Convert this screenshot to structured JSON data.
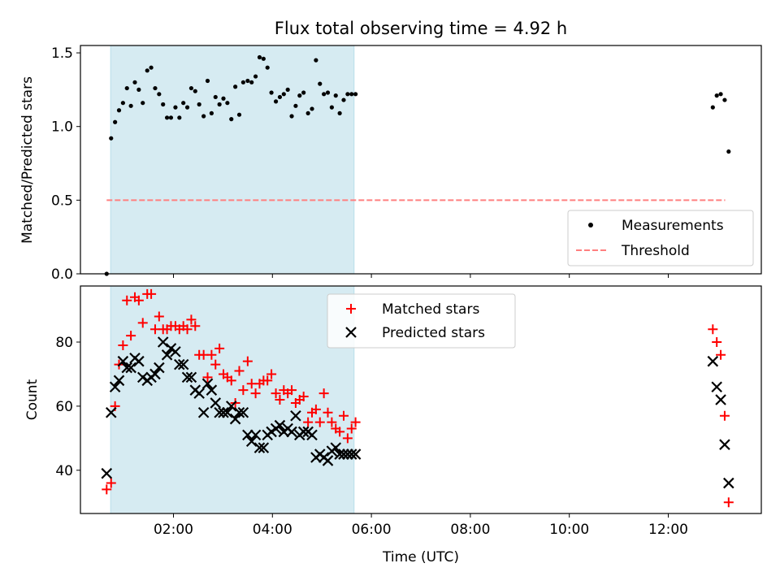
{
  "chart_data": [
    {
      "type": "scatter",
      "title": "Flux total observing time = 4.92 h",
      "xlabel": "",
      "ylabel": "Matched/Predicted stars",
      "x_unit": "hours UTC",
      "xlim": [
        0.12,
        13.88
      ],
      "ylim": [
        0.0,
        1.55
      ],
      "yticks": [
        0.0,
        0.5,
        1.0,
        1.5
      ],
      "ytick_labels": [
        "0.0",
        "0.5",
        "1.0",
        "1.5"
      ],
      "shaded_span": [
        0.73,
        5.65
      ],
      "shade_color": "#add8e6",
      "threshold": {
        "label": "Threshold",
        "value": 0.5,
        "x_range": [
          0.65,
          13.15
        ],
        "color": "#ff7f7f"
      },
      "legend": {
        "placement": "lower right",
        "entries": [
          "Measurements",
          "Threshold"
        ]
      },
      "series": [
        {
          "name": "Measurements",
          "marker": "dot",
          "color": "#000000",
          "x": [
            0.65,
            0.74,
            0.82,
            0.9,
            0.98,
            1.06,
            1.14,
            1.22,
            1.3,
            1.38,
            1.47,
            1.55,
            1.63,
            1.71,
            1.79,
            1.87,
            1.95,
            2.04,
            2.12,
            2.2,
            2.28,
            2.36,
            2.44,
            2.52,
            2.61,
            2.69,
            2.77,
            2.85,
            2.93,
            3.01,
            3.09,
            3.17,
            3.25,
            3.33,
            3.41,
            3.5,
            3.58,
            3.66,
            3.74,
            3.82,
            3.9,
            3.98,
            4.07,
            4.15,
            4.23,
            4.31,
            4.39,
            4.47,
            4.55,
            4.63,
            4.72,
            4.8,
            4.88,
            4.96,
            5.04,
            5.12,
            5.2,
            5.28,
            5.36,
            5.44,
            5.52,
            5.6,
            5.68,
            12.9,
            12.98,
            13.06,
            13.14,
            13.22
          ],
          "y": [
            0.0,
            0.92,
            1.03,
            1.11,
            1.16,
            1.26,
            1.14,
            1.3,
            1.25,
            1.16,
            1.38,
            1.4,
            1.26,
            1.22,
            1.15,
            1.06,
            1.06,
            1.13,
            1.06,
            1.16,
            1.13,
            1.26,
            1.24,
            1.15,
            1.07,
            1.31,
            1.09,
            1.2,
            1.15,
            1.19,
            1.16,
            1.05,
            1.27,
            1.08,
            1.3,
            1.31,
            1.3,
            1.34,
            1.47,
            1.46,
            1.4,
            1.23,
            1.17,
            1.2,
            1.22,
            1.25,
            1.07,
            1.14,
            1.21,
            1.23,
            1.09,
            1.12,
            1.45,
            1.29,
            1.22,
            1.23,
            1.13,
            1.21,
            1.09,
            1.18,
            1.22,
            1.22,
            1.22,
            1.13,
            1.21,
            1.22,
            1.18,
            0.83
          ]
        }
      ]
    },
    {
      "type": "scatter",
      "title": "",
      "xlabel": "Time (UTC)",
      "ylabel": "Count",
      "x_unit": "hours UTC",
      "xlim": [
        0.12,
        13.88
      ],
      "ylim": [
        26.5,
        97.5
      ],
      "yticks": [
        40,
        60,
        80
      ],
      "ytick_labels": [
        "40",
        "60",
        "80"
      ],
      "xticks": [
        2,
        4,
        6,
        8,
        10,
        12
      ],
      "xtick_labels": [
        "02:00",
        "04:00",
        "06:00",
        "08:00",
        "10:00",
        "12:00"
      ],
      "shaded_span": [
        0.73,
        5.65
      ],
      "shade_color": "#add8e6",
      "legend": {
        "placement": "upper center",
        "entries": [
          "Matched stars",
          "Predicted stars"
        ]
      },
      "series": [
        {
          "name": "Matched stars",
          "marker": "plus",
          "color": "#ff0000",
          "x": [
            0.65,
            0.74,
            0.82,
            0.9,
            0.98,
            1.06,
            1.14,
            1.22,
            1.3,
            1.38,
            1.47,
            1.55,
            1.63,
            1.71,
            1.79,
            1.87,
            1.95,
            2.04,
            2.12,
            2.2,
            2.28,
            2.36,
            2.44,
            2.52,
            2.61,
            2.69,
            2.77,
            2.85,
            2.93,
            3.01,
            3.09,
            3.17,
            3.25,
            3.33,
            3.41,
            3.5,
            3.58,
            3.66,
            3.74,
            3.82,
            3.9,
            3.98,
            4.07,
            4.15,
            4.23,
            4.31,
            4.39,
            4.47,
            4.55,
            4.63,
            4.72,
            4.8,
            4.88,
            4.96,
            5.04,
            5.12,
            5.2,
            5.28,
            5.36,
            5.44,
            5.52,
            5.6,
            5.68,
            12.9,
            12.98,
            13.06,
            13.14,
            13.22
          ],
          "y": [
            34,
            36,
            60,
            73,
            79,
            93,
            82,
            94,
            93,
            86,
            95,
            95,
            84,
            88,
            84,
            84,
            85,
            85,
            84,
            85,
            84,
            87,
            85,
            76,
            76,
            69,
            76,
            73,
            78,
            70,
            69,
            68,
            61,
            71,
            65,
            74,
            67,
            64,
            67,
            68,
            68,
            70,
            64,
            62,
            65,
            64,
            65,
            61,
            62,
            63,
            55,
            58,
            59,
            55,
            64,
            58,
            55,
            53,
            52,
            57,
            50,
            53,
            55,
            84,
            80,
            76,
            57,
            30
          ]
        },
        {
          "name": "Predicted stars",
          "marker": "x",
          "color": "#000000",
          "x": [
            0.65,
            0.74,
            0.82,
            0.9,
            0.98,
            1.06,
            1.14,
            1.22,
            1.3,
            1.38,
            1.47,
            1.55,
            1.63,
            1.71,
            1.79,
            1.87,
            1.95,
            2.04,
            2.12,
            2.2,
            2.28,
            2.36,
            2.44,
            2.52,
            2.61,
            2.69,
            2.77,
            2.85,
            2.93,
            3.01,
            3.09,
            3.17,
            3.25,
            3.33,
            3.41,
            3.5,
            3.58,
            3.66,
            3.74,
            3.82,
            3.9,
            3.98,
            4.07,
            4.15,
            4.23,
            4.31,
            4.39,
            4.47,
            4.55,
            4.63,
            4.72,
            4.8,
            4.88,
            4.96,
            5.04,
            5.12,
            5.2,
            5.28,
            5.36,
            5.44,
            5.52,
            5.6,
            5.68,
            12.9,
            12.98,
            13.06,
            13.14,
            13.22
          ],
          "y": [
            39,
            58,
            66,
            68,
            74,
            72,
            72,
            75,
            74,
            69,
            68,
            69,
            70,
            72,
            80,
            76,
            78,
            77,
            73,
            73,
            69,
            69,
            65,
            64,
            58,
            67,
            65,
            61,
            58,
            58,
            58,
            60,
            56,
            58,
            58,
            51,
            49,
            51,
            47,
            47,
            51,
            52,
            53,
            54,
            52,
            53,
            52,
            57,
            51,
            52,
            52,
            51,
            44,
            45,
            44,
            43,
            46,
            47,
            45,
            45,
            45,
            45,
            45,
            74,
            66,
            62,
            48,
            36
          ]
        }
      ]
    }
  ]
}
